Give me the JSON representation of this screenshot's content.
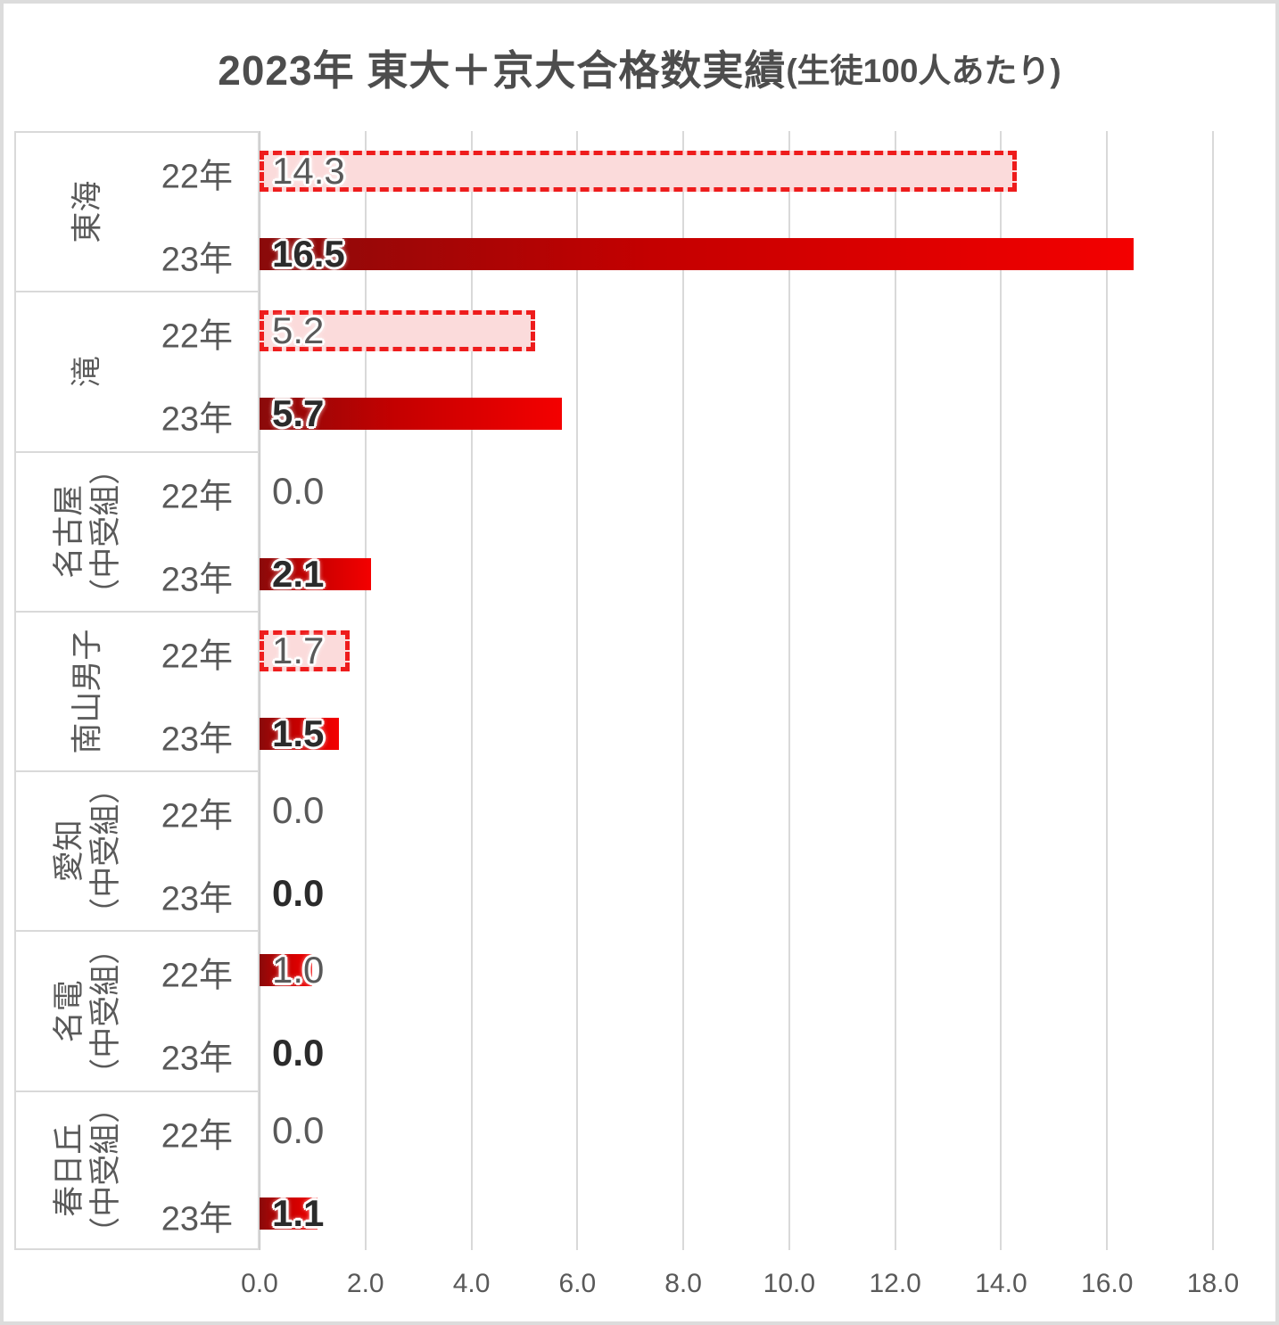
{
  "title": {
    "main": "2023年 東大＋京大合格数実績",
    "sub": "(生徒100人あたり)"
  },
  "chart_data": {
    "type": "bar",
    "orientation": "horizontal",
    "title": "2023年 東大＋京大合格数実績(生徒100人あたり)",
    "xlabel": "",
    "ylabel": "",
    "xlim": [
      0,
      18
    ],
    "grid": true,
    "legend": "none",
    "x_ticks": [
      "0.0",
      "2.0",
      "4.0",
      "6.0",
      "8.0",
      "10.0",
      "12.0",
      "14.0",
      "16.0",
      "18.0"
    ],
    "categories": [
      "東海",
      "滝",
      "名古屋（中受組）",
      "南山男子",
      "愛知（中受組）",
      "名電（中受組）",
      "春日丘（中受組）"
    ],
    "series": [
      {
        "name": "22年",
        "values": [
          14.3,
          5.2,
          0.0,
          1.7,
          0.0,
          1.0,
          0.0
        ]
      },
      {
        "name": "23年",
        "values": [
          16.5,
          5.7,
          2.1,
          1.5,
          0.0,
          0.0,
          1.1
        ]
      }
    ],
    "rows": [
      {
        "school_lines": [
          "東海"
        ],
        "bars": [
          {
            "year": "22年",
            "value": 14.3,
            "label": "14.3",
            "bar_style": "dashed",
            "label_bold": false
          },
          {
            "year": "23年",
            "value": 16.5,
            "label": "16.5",
            "bar_style": "solid",
            "label_bold": true
          }
        ]
      },
      {
        "school_lines": [
          "滝"
        ],
        "bars": [
          {
            "year": "22年",
            "value": 5.2,
            "label": "5.2",
            "bar_style": "dashed",
            "label_bold": false
          },
          {
            "year": "23年",
            "value": 5.7,
            "label": "5.7",
            "bar_style": "solid",
            "label_bold": true
          }
        ]
      },
      {
        "school_lines": [
          "名古屋",
          "（中受組）"
        ],
        "bars": [
          {
            "year": "22年",
            "value": 0.0,
            "label": "0.0",
            "bar_style": "none",
            "label_bold": false
          },
          {
            "year": "23年",
            "value": 2.1,
            "label": "2.1",
            "bar_style": "solid",
            "label_bold": true
          }
        ]
      },
      {
        "school_lines": [
          "南山男子"
        ],
        "bars": [
          {
            "year": "22年",
            "value": 1.7,
            "label": "1.7",
            "bar_style": "dashed",
            "label_bold": false
          },
          {
            "year": "23年",
            "value": 1.5,
            "label": "1.5",
            "bar_style": "solid",
            "label_bold": true
          }
        ]
      },
      {
        "school_lines": [
          "愛知",
          "（中受組）"
        ],
        "bars": [
          {
            "year": "22年",
            "value": 0.0,
            "label": "0.0",
            "bar_style": "none",
            "label_bold": false
          },
          {
            "year": "23年",
            "value": 0.0,
            "label": "0.0",
            "bar_style": "none",
            "label_bold": true
          }
        ]
      },
      {
        "school_lines": [
          "名電",
          "（中受組）"
        ],
        "bars": [
          {
            "year": "22年",
            "value": 1.0,
            "label": "1.0",
            "bar_style": "solid",
            "label_bold": false
          },
          {
            "year": "23年",
            "value": 0.0,
            "label": "0.0",
            "bar_style": "none",
            "label_bold": true
          }
        ]
      },
      {
        "school_lines": [
          "春日丘",
          "（中受組）"
        ],
        "bars": [
          {
            "year": "22年",
            "value": 0.0,
            "label": "0.0",
            "bar_style": "none",
            "label_bold": false
          },
          {
            "year": "23年",
            "value": 1.1,
            "label": "1.1",
            "bar_style": "solid",
            "label_bold": true
          }
        ]
      }
    ],
    "colors": {
      "bar-2022-fill": "#fbdbdb",
      "bar-2022-dash": "#ee1c1c",
      "bar-2023-dark": "#8a0a0a",
      "bar-2023-mid": "#c40000",
      "bar-2023-bright": "#f40000",
      "grid": "#d9d9d9",
      "axis": "#c6c6c6",
      "text-gray": "#595959",
      "text-dark": "#2b2b2b",
      "title": "#4d4d4d",
      "frame-border": "#dcdcdc"
    }
  }
}
